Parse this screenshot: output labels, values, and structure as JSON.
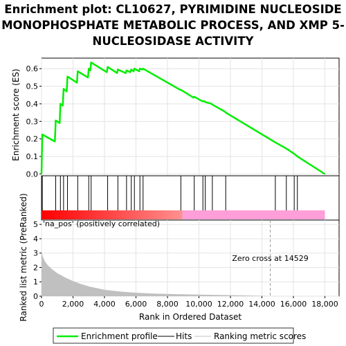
{
  "title_lines": [
    "Enrichment plot: CL10627, PYRIMIDINE NUCLEOSIDE",
    "MONOPHOSPHATE METABOLIC PROCESS, AND XMP 5-",
    "NUCLEOSIDASE ACTIVITY"
  ],
  "colors": {
    "profile": "#00ee00",
    "hits": "#000000",
    "ranking": "#c0c0c0",
    "pos_band": "#ff0000",
    "neg_band": "#ff9ed8",
    "pos_label": "#ee3344",
    "zero_line": "#999999"
  },
  "chart_data": [
    {
      "type": "line",
      "name": "enrichment-profile",
      "ylabel": "Enrichment score (ES)",
      "ylim": [
        -0.01,
        0.66
      ],
      "yticks": [
        0.0,
        0.1,
        0.2,
        0.3,
        0.4,
        0.5,
        0.6
      ],
      "ytick_labels": [
        "0.0",
        "0.1",
        "0.2",
        "0.3",
        "0.4",
        "0.5",
        "0.6"
      ],
      "xlim": [
        0,
        18900
      ],
      "grid": true,
      "x": [
        0,
        50,
        850,
        900,
        1150,
        1200,
        1350,
        1400,
        1600,
        1650,
        2250,
        2300,
        2950,
        3000,
        3100,
        3150,
        4150,
        4200,
        4800,
        4850,
        5350,
        5400,
        5650,
        5700,
        5850,
        5900,
        6200,
        6250,
        6400,
        6450,
        8800,
        8850,
        9650,
        9700,
        10200,
        10250,
        10350,
        10400,
        10800,
        10850,
        11650,
        11700,
        14850,
        15550,
        16050,
        16250,
        18000
      ],
      "y": [
        0.0,
        0.225,
        0.185,
        0.305,
        0.29,
        0.4,
        0.39,
        0.485,
        0.47,
        0.555,
        0.52,
        0.585,
        0.55,
        0.6,
        0.59,
        0.635,
        0.58,
        0.61,
        0.575,
        0.595,
        0.575,
        0.59,
        0.58,
        0.595,
        0.585,
        0.6,
        0.585,
        0.6,
        0.595,
        0.6,
        0.48,
        0.48,
        0.435,
        0.44,
        0.415,
        0.415,
        0.415,
        0.41,
        0.4,
        0.395,
        0.355,
        0.35,
        0.18,
        0.145,
        0.115,
        0.1,
        0.0
      ]
    },
    {
      "type": "scatter",
      "name": "hits",
      "x": [
        50,
        900,
        1200,
        1400,
        1650,
        2300,
        3000,
        3150,
        4200,
        4850,
        5400,
        5700,
        5900,
        6250,
        6450,
        8850,
        9700,
        10250,
        10400,
        10850,
        11700,
        14850,
        15550,
        16050,
        16250
      ]
    },
    {
      "type": "area",
      "name": "ranking-metric",
      "xlabel": "Rank in Ordered Dataset",
      "ylabel": "Ranked list metric (PreRanked)",
      "ylim": [
        0,
        5.3
      ],
      "yticks": [
        0,
        1,
        2,
        3,
        4,
        5
      ],
      "ytick_labels": [
        "0",
        "1",
        "2",
        "3",
        "4",
        "5"
      ],
      "xlim": [
        0,
        18900
      ],
      "xticks": [
        0,
        2000,
        4000,
        6000,
        8000,
        10000,
        12000,
        14000,
        16000,
        18000
      ],
      "xtick_labels": [
        "0",
        "2,000",
        "4,000",
        "6,000",
        "8,000",
        "10,000",
        "12,000",
        "14,000",
        "16,000",
        "18,000"
      ],
      "grid": true,
      "x": [
        0,
        20,
        100,
        200,
        400,
        700,
        1000,
        1500,
        2000,
        2500,
        3000,
        4000,
        5000,
        6000,
        7000,
        8000,
        9000,
        10000,
        11000,
        12000,
        13000,
        14000,
        14529,
        15000,
        16000,
        17000,
        18000
      ],
      "y": [
        3.2,
        3.0,
        2.7,
        2.45,
        2.15,
        1.85,
        1.6,
        1.3,
        1.05,
        0.85,
        0.68,
        0.45,
        0.32,
        0.24,
        0.19,
        0.155,
        0.13,
        0.11,
        0.09,
        0.07,
        0.05,
        0.025,
        0.0,
        0.0,
        0.0,
        0.0,
        0.0
      ],
      "zero_cross": 14529,
      "zero_cross_label": "Zero cross at 14529",
      "pos_label": "'na_pos' (positively correlated)",
      "pos_end": 8950,
      "list_end": 18000
    }
  ],
  "legend": {
    "items": [
      {
        "label": "Enrichment profile"
      },
      {
        "label": "Hits"
      },
      {
        "label": "Ranking metric scores"
      }
    ]
  }
}
